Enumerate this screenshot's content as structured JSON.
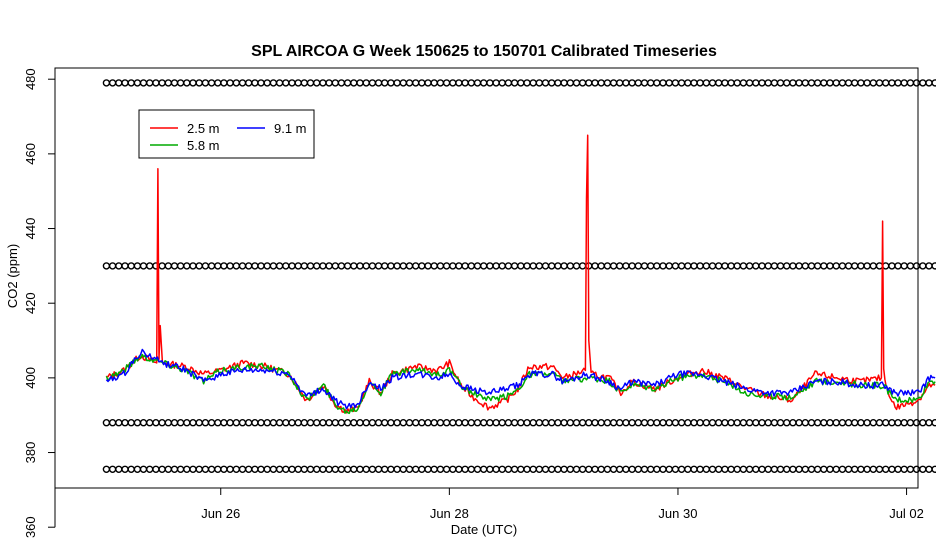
{
  "chart_data": {
    "type": "line",
    "title": "SPL AIRCOA G  Week 150625 to 150701  Calibrated Timeseries",
    "xlabel": "Date (UTC)",
    "ylabel": "CO2 (ppm)",
    "x_tick_labels": [
      "Jun 26",
      "Jun 28",
      "Jun 30",
      "Jul 02"
    ],
    "x_tick_days": [
      26,
      28,
      30,
      32
    ],
    "y_ticks": [
      360,
      380,
      400,
      420,
      440,
      460,
      480
    ],
    "xlim_days": [
      24.55,
      32.1
    ],
    "ylim": [
      370.5,
      483
    ],
    "grid": false,
    "legend": {
      "placement": "top-left",
      "entries": [
        {
          "name": "2.5 m",
          "color": "#ff0000"
        },
        {
          "name": "5.8 m",
          "color": "#00aa00"
        },
        {
          "name": "9.1 m",
          "color": "#0000ff"
        }
      ]
    },
    "series": [
      {
        "name": "2.5 m",
        "color": "#ff0000",
        "points": [
          [
            25.0,
            400
          ],
          [
            25.15,
            402
          ],
          [
            25.3,
            406
          ],
          [
            25.44,
            404
          ],
          [
            25.45,
            456
          ],
          [
            25.46,
            405
          ],
          [
            25.47,
            414
          ],
          [
            25.49,
            404
          ],
          [
            25.7,
            403
          ],
          [
            25.85,
            401
          ],
          [
            26.0,
            402
          ],
          [
            26.2,
            404
          ],
          [
            26.4,
            403
          ],
          [
            26.6,
            401
          ],
          [
            26.75,
            394
          ],
          [
            26.9,
            398
          ],
          [
            27.0,
            393
          ],
          [
            27.1,
            391
          ],
          [
            27.2,
            392
          ],
          [
            27.3,
            399
          ],
          [
            27.4,
            396
          ],
          [
            27.5,
            401
          ],
          [
            27.7,
            403
          ],
          [
            27.9,
            402
          ],
          [
            28.0,
            404
          ],
          [
            28.1,
            398
          ],
          [
            28.2,
            395
          ],
          [
            28.35,
            392
          ],
          [
            28.5,
            394
          ],
          [
            28.6,
            397
          ],
          [
            28.7,
            403
          ],
          [
            28.9,
            403
          ],
          [
            29.0,
            400
          ],
          [
            29.1,
            401
          ],
          [
            29.19,
            402
          ],
          [
            29.2,
            448
          ],
          [
            29.21,
            465
          ],
          [
            29.22,
            410
          ],
          [
            29.24,
            401
          ],
          [
            29.4,
            400
          ],
          [
            29.5,
            396
          ],
          [
            29.6,
            399
          ],
          [
            29.8,
            397
          ],
          [
            30.0,
            400
          ],
          [
            30.2,
            402
          ],
          [
            30.4,
            400
          ],
          [
            30.6,
            397
          ],
          [
            30.8,
            395
          ],
          [
            31.0,
            394
          ],
          [
            31.2,
            401
          ],
          [
            31.4,
            400
          ],
          [
            31.6,
            399
          ],
          [
            31.78,
            400
          ],
          [
            31.79,
            442
          ],
          [
            31.8,
            402
          ],
          [
            31.82,
            398
          ],
          [
            31.9,
            392
          ],
          [
            32.0,
            393
          ],
          [
            32.1,
            394
          ],
          [
            32.2,
            398
          ],
          [
            32.25,
            398
          ]
        ]
      },
      {
        "name": "5.8 m",
        "color": "#00aa00",
        "points": [
          [
            25.0,
            400
          ],
          [
            25.15,
            402
          ],
          [
            25.3,
            406
          ],
          [
            25.5,
            404
          ],
          [
            25.7,
            402
          ],
          [
            25.85,
            399
          ],
          [
            26.0,
            402
          ],
          [
            26.2,
            403
          ],
          [
            26.4,
            403
          ],
          [
            26.6,
            401
          ],
          [
            26.75,
            394
          ],
          [
            26.9,
            398
          ],
          [
            27.0,
            393
          ],
          [
            27.1,
            391
          ],
          [
            27.2,
            392
          ],
          [
            27.3,
            399
          ],
          [
            27.4,
            396
          ],
          [
            27.5,
            401
          ],
          [
            27.7,
            402
          ],
          [
            27.9,
            401
          ],
          [
            28.0,
            402
          ],
          [
            28.1,
            398
          ],
          [
            28.2,
            396
          ],
          [
            28.35,
            394
          ],
          [
            28.5,
            395
          ],
          [
            28.6,
            397
          ],
          [
            28.7,
            401
          ],
          [
            28.9,
            401
          ],
          [
            29.0,
            399
          ],
          [
            29.2,
            400
          ],
          [
            29.4,
            399
          ],
          [
            29.5,
            396
          ],
          [
            29.6,
            398
          ],
          [
            29.8,
            397
          ],
          [
            30.0,
            400
          ],
          [
            30.2,
            401
          ],
          [
            30.4,
            399
          ],
          [
            30.6,
            396
          ],
          [
            30.8,
            395
          ],
          [
            31.0,
            395
          ],
          [
            31.2,
            399
          ],
          [
            31.4,
            399
          ],
          [
            31.6,
            398
          ],
          [
            31.8,
            398
          ],
          [
            31.9,
            394
          ],
          [
            32.0,
            394
          ],
          [
            32.1,
            394
          ],
          [
            32.2,
            399
          ],
          [
            32.25,
            399
          ]
        ]
      },
      {
        "name": "9.1 m",
        "color": "#0000ff",
        "points": [
          [
            25.0,
            399
          ],
          [
            25.15,
            401
          ],
          [
            25.3,
            407
          ],
          [
            25.5,
            404
          ],
          [
            25.7,
            402
          ],
          [
            25.85,
            399
          ],
          [
            26.0,
            401
          ],
          [
            26.2,
            402
          ],
          [
            26.4,
            402
          ],
          [
            26.6,
            401
          ],
          [
            26.75,
            395
          ],
          [
            26.9,
            397
          ],
          [
            27.0,
            394
          ],
          [
            27.1,
            392
          ],
          [
            27.2,
            393
          ],
          [
            27.3,
            399
          ],
          [
            27.4,
            397
          ],
          [
            27.5,
            400
          ],
          [
            27.7,
            401
          ],
          [
            27.9,
            400
          ],
          [
            28.0,
            401
          ],
          [
            28.1,
            398
          ],
          [
            28.2,
            397
          ],
          [
            28.35,
            396
          ],
          [
            28.5,
            397
          ],
          [
            28.6,
            398
          ],
          [
            28.7,
            401
          ],
          [
            28.9,
            401
          ],
          [
            29.0,
            399
          ],
          [
            29.2,
            401
          ],
          [
            29.4,
            399
          ],
          [
            29.5,
            397
          ],
          [
            29.6,
            399
          ],
          [
            29.8,
            398
          ],
          [
            30.0,
            401
          ],
          [
            30.2,
            401
          ],
          [
            30.4,
            399
          ],
          [
            30.6,
            397
          ],
          [
            30.8,
            396
          ],
          [
            31.0,
            396
          ],
          [
            31.2,
            399
          ],
          [
            31.4,
            399
          ],
          [
            31.6,
            398
          ],
          [
            31.8,
            398
          ],
          [
            31.9,
            396
          ],
          [
            32.0,
            396
          ],
          [
            32.1,
            396
          ],
          [
            32.2,
            400
          ],
          [
            32.25,
            400
          ]
        ]
      }
    ],
    "marker_rows": [
      {
        "y": 479,
        "x_start": 25.0,
        "x_end": 32.25
      },
      {
        "y": 430,
        "x_start": 25.0,
        "x_end": 32.25
      },
      {
        "y": 388,
        "x_start": 25.0,
        "x_end": 32.25
      },
      {
        "y": 375.5,
        "x_start": 25.0,
        "x_end": 32.25
      }
    ],
    "marker_symbol": "open-circle"
  }
}
